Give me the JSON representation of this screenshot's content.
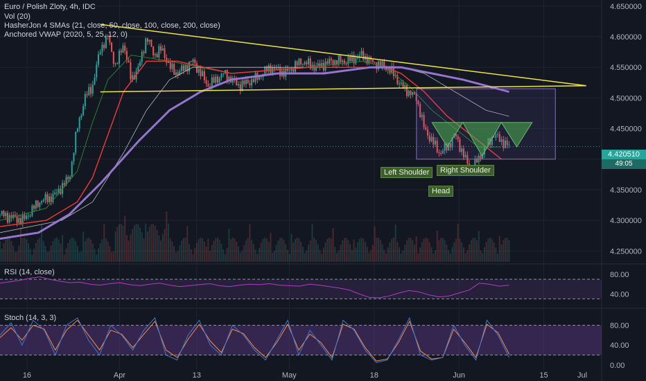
{
  "header": {
    "symbol_line": "Euro / Polish Zloty, 4h, IDC",
    "indicators": [
      "Vol (20)",
      "HasherJon 4 SMAs (21, close, 50, close, 100, close, 200, close)",
      "Anchored VWAP (2020, 5, 25, 12, 0)"
    ]
  },
  "panes": {
    "rsi_label": "RSI (14, close)",
    "stoch_label": "Stoch (14, 3, 3)"
  },
  "price_badges": {
    "last_price": "4.420510",
    "countdown": "49:05"
  },
  "pattern_labels": {
    "left_shoulder": "Left Shoulder",
    "head": "Head",
    "right_shoulder": "Right Shoulder"
  },
  "colors": {
    "background": "#131722",
    "grid": "#1f2430",
    "triangle": "#f0e442",
    "sma21": "#2e7d32",
    "sma50": "#e53935",
    "sma100": "#e0e0e0",
    "vwap": "#9575cd",
    "up_candle": "#26a69a",
    "down_candle": "#ef5350",
    "pattern_fill": "#4caf50",
    "rsi_line": "#b03fc0",
    "stoch_k": "#3a7bd5",
    "stoch_d": "#ff8a3d",
    "band_fill": "#5e3a87"
  },
  "chart_data": [
    {
      "type": "candlestick",
      "pane": "main",
      "title": "Euro / Polish Zloty, 4h, IDC",
      "ylim": [
        4.23,
        4.66
      ],
      "y_ticks": [
        "4.650000",
        "4.600000",
        "4.550000",
        "4.500000",
        "4.450000",
        "4.400000",
        "4.350000",
        "4.300000",
        "4.250000"
      ],
      "x_ticks": [
        "16",
        "Apr",
        "13",
        "May",
        "18",
        "Jun",
        "15",
        "Jul"
      ],
      "close_path": [
        [
          0,
          4.31
        ],
        [
          3,
          4.3
        ],
        [
          5,
          4.33
        ],
        [
          7,
          4.34
        ],
        [
          9,
          4.37
        ],
        [
          10,
          4.45
        ],
        [
          11,
          4.5
        ],
        [
          12,
          4.52
        ],
        [
          13,
          4.58
        ],
        [
          14,
          4.6
        ],
        [
          15,
          4.55
        ],
        [
          16,
          4.59
        ],
        [
          17,
          4.53
        ],
        [
          18,
          4.55
        ],
        [
          19,
          4.6
        ],
        [
          20,
          4.57
        ],
        [
          21,
          4.58
        ],
        [
          22,
          4.55
        ],
        [
          23,
          4.54
        ],
        [
          25,
          4.56
        ],
        [
          27,
          4.52
        ],
        [
          29,
          4.54
        ],
        [
          31,
          4.52
        ],
        [
          33,
          4.53
        ],
        [
          35,
          4.55
        ],
        [
          37,
          4.54
        ],
        [
          39,
          4.56
        ],
        [
          41,
          4.55
        ],
        [
          43,
          4.56
        ],
        [
          45,
          4.56
        ],
        [
          47,
          4.57
        ],
        [
          48,
          4.56
        ],
        [
          50,
          4.55
        ],
        [
          51,
          4.54
        ],
        [
          52,
          4.52
        ],
        [
          53,
          4.51
        ],
        [
          54,
          4.5
        ],
        [
          55,
          4.45
        ],
        [
          56,
          4.43
        ],
        [
          57,
          4.41
        ],
        [
          58,
          4.42
        ],
        [
          59,
          4.44
        ],
        [
          60,
          4.41
        ],
        [
          61,
          4.38
        ],
        [
          62,
          4.4
        ],
        [
          63,
          4.42
        ],
        [
          64,
          4.44
        ],
        [
          65,
          4.43
        ],
        [
          66,
          4.42
        ]
      ],
      "sma21": [
        [
          0,
          4.3
        ],
        [
          6,
          4.32
        ],
        [
          10,
          4.38
        ],
        [
          12,
          4.46
        ],
        [
          14,
          4.53
        ],
        [
          17,
          4.57
        ],
        [
          22,
          4.56
        ],
        [
          30,
          4.54
        ],
        [
          40,
          4.55
        ],
        [
          47,
          4.56
        ],
        [
          50,
          4.55
        ],
        [
          53,
          4.52
        ],
        [
          56,
          4.48
        ],
        [
          59,
          4.45
        ],
        [
          62,
          4.42
        ],
        [
          65,
          4.42
        ]
      ],
      "sma50": [
        [
          0,
          4.29
        ],
        [
          6,
          4.3
        ],
        [
          10,
          4.33
        ],
        [
          12,
          4.37
        ],
        [
          14,
          4.44
        ],
        [
          16,
          4.51
        ],
        [
          19,
          4.56
        ],
        [
          23,
          4.56
        ],
        [
          30,
          4.54
        ],
        [
          40,
          4.55
        ],
        [
          47,
          4.55
        ],
        [
          50,
          4.55
        ],
        [
          52,
          4.54
        ],
        [
          55,
          4.51
        ],
        [
          58,
          4.47
        ],
        [
          61,
          4.44
        ],
        [
          64,
          4.41
        ],
        [
          65,
          4.4
        ]
      ],
      "sma100": [
        [
          0,
          4.28
        ],
        [
          8,
          4.3
        ],
        [
          12,
          4.33
        ],
        [
          16,
          4.41
        ],
        [
          19,
          4.48
        ],
        [
          22,
          4.53
        ],
        [
          25,
          4.55
        ],
        [
          30,
          4.55
        ],
        [
          40,
          4.55
        ],
        [
          47,
          4.55
        ],
        [
          52,
          4.55
        ],
        [
          55,
          4.54
        ],
        [
          59,
          4.51
        ],
        [
          63,
          4.48
        ],
        [
          66,
          4.47
        ]
      ],
      "vwap": [
        [
          0,
          4.27
        ],
        [
          5,
          4.28
        ],
        [
          9,
          4.31
        ],
        [
          13,
          4.36
        ],
        [
          18,
          4.43
        ],
        [
          22,
          4.48
        ],
        [
          26,
          4.51
        ],
        [
          30,
          4.53
        ],
        [
          36,
          4.54
        ],
        [
          42,
          4.54
        ],
        [
          48,
          4.55
        ],
        [
          52,
          4.55
        ],
        [
          56,
          4.54
        ],
        [
          60,
          4.53
        ],
        [
          63,
          4.52
        ],
        [
          66,
          4.51
        ]
      ],
      "triangle_upper": [
        [
          13,
          4.62
        ],
        [
          76,
          4.52
        ]
      ],
      "triangle_lower": [
        [
          13,
          4.51
        ],
        [
          76,
          4.52
        ]
      ],
      "range_box": {
        "x": [
          54,
          72
        ],
        "y": [
          4.4,
          4.515
        ]
      },
      "pattern_triangles": [
        {
          "name": "Left Shoulder",
          "points": [
            [
              56,
              4.46
            ],
            [
              60,
              4.46
            ],
            [
              58,
              4.42
            ]
          ]
        },
        {
          "name": "Head",
          "points": [
            [
              60,
              4.46
            ],
            [
              65,
              4.46
            ],
            [
              62.5,
              4.405
            ]
          ]
        },
        {
          "name": "Right Shoulder",
          "points": [
            [
              65,
              4.46
            ],
            [
              69,
              4.46
            ],
            [
              67,
              4.42
            ]
          ]
        }
      ],
      "last_price": 4.42051
    },
    {
      "type": "line",
      "pane": "rsi",
      "title": "RSI (14, close)",
      "ylim": [
        15,
        100
      ],
      "y_ticks": [
        "80.00",
        "40.00"
      ],
      "bands": [
        70,
        30
      ],
      "values": [
        62,
        65,
        68,
        72,
        75,
        70,
        66,
        63,
        64,
        60,
        58,
        61,
        63,
        59,
        57,
        60,
        62,
        58,
        55,
        57,
        59,
        61,
        57,
        55,
        58,
        60,
        59,
        61,
        58,
        57,
        56,
        60,
        58,
        55,
        52,
        48,
        40,
        33,
        32,
        36,
        42,
        47,
        44,
        38,
        34,
        36,
        42,
        48,
        62,
        60,
        56,
        58
      ]
    },
    {
      "type": "line",
      "pane": "stoch",
      "title": "Stoch (14, 3, 3)",
      "ylim": [
        -10,
        110
      ],
      "y_ticks": [
        "80.00",
        "40.00",
        "0.00"
      ],
      "bands": [
        80,
        20
      ],
      "k": [
        60,
        85,
        40,
        90,
        70,
        20,
        80,
        95,
        50,
        20,
        80,
        60,
        30,
        70,
        95,
        20,
        10,
        60,
        90,
        40,
        20,
        80,
        60,
        30,
        10,
        50,
        90,
        20,
        70,
        40,
        10,
        90,
        70,
        30,
        5,
        10,
        50,
        95,
        20,
        10,
        15,
        80,
        40,
        10,
        90,
        60,
        15
      ],
      "d": [
        55,
        75,
        50,
        80,
        72,
        30,
        70,
        90,
        60,
        30,
        70,
        62,
        35,
        62,
        88,
        30,
        15,
        52,
        82,
        48,
        25,
        72,
        63,
        35,
        15,
        45,
        82,
        30,
        62,
        45,
        15,
        82,
        72,
        35,
        8,
        12,
        45,
        88,
        28,
        12,
        15,
        72,
        45,
        15,
        82,
        65,
        22
      ]
    }
  ]
}
